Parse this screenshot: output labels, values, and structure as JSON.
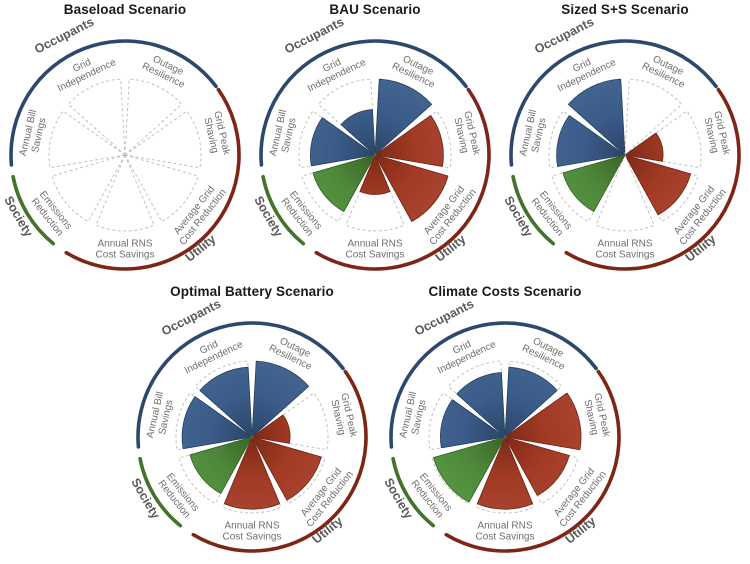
{
  "figure_title": "",
  "chart_data": {
    "type": "polar-petal",
    "value_scale": "0 to 1 (fraction of full petal radius, estimated from figure)",
    "grid": "dashed sector outlines mark full-scale petals",
    "legend_position": "outer arcs grouping metrics by stakeholder",
    "metrics": [
      {
        "label": "Grid Independence",
        "label_lines": [
          "Grid",
          "Independence"
        ],
        "group": "Occupants"
      },
      {
        "label": "Outage Resilience",
        "label_lines": [
          "Outage",
          "Resilience"
        ],
        "group": "Occupants"
      },
      {
        "label": "Grid Peak Shaving",
        "label_lines": [
          "Grid Peak",
          "Shaving"
        ],
        "group": "Utility"
      },
      {
        "label": "Average Grid Cost Reduction",
        "label_lines": [
          "Average Grid",
          "Cost Reduction"
        ],
        "group": "Utility"
      },
      {
        "label": "Annual RNS Cost Savings",
        "label_lines": [
          "Annual RNS",
          "Cost Savings"
        ],
        "group": "Utility"
      },
      {
        "label": "Emissions Reduction",
        "label_lines": [
          "Emissions",
          "Reduction"
        ],
        "group": "Society"
      },
      {
        "label": "Annual Bill Savings",
        "label_lines": [
          "Annual Bill",
          "Savings"
        ],
        "group": "Occupants"
      }
    ],
    "groups": [
      {
        "name": "Occupants",
        "arc_color": "#2c486d",
        "petal_fill": "#3b5b89",
        "petal_center": "#2a4567",
        "petal_edge": "#42648f",
        "petal_stroke": "#273f5f"
      },
      {
        "name": "Utility",
        "arc_color": "#7e2515",
        "petal_fill": "#a23a24",
        "petal_center": "#7d2a18",
        "petal_edge": "#a84330",
        "petal_stroke": "#6f2212"
      },
      {
        "name": "Society",
        "arc_color": "#44722a",
        "petal_fill": "#4d883a",
        "petal_center": "#3a6526",
        "petal_edge": "#559540",
        "petal_stroke": "#335c20"
      }
    ],
    "colors": {
      "metric_label": "#6f6f6f",
      "group_label": "#595959",
      "dashed_outline": "#bcbcbc",
      "title": "#1a1a1a",
      "background": "#ffffff"
    },
    "scenarios": [
      {
        "title": "Baseload Scenario",
        "values": [
          0,
          0,
          0,
          0,
          0,
          0,
          0
        ]
      },
      {
        "title": "BAU Scenario",
        "values": [
          0.6,
          1.0,
          0.9,
          1.0,
          0.52,
          0.85,
          0.85
        ]
      },
      {
        "title": "Sized S+S Scenario",
        "values": [
          1.0,
          0,
          0.5,
          0.9,
          0,
          0.85,
          0.9
        ]
      },
      {
        "title": "Optimal Battery Scenario",
        "values": [
          0.92,
          1.0,
          0.5,
          0.95,
          0.95,
          0.85,
          0.92
        ]
      },
      {
        "title": "Climate Costs Scenario",
        "values": [
          0.85,
          0.92,
          1.0,
          0.88,
          0.95,
          0.98,
          0.85
        ]
      }
    ]
  }
}
